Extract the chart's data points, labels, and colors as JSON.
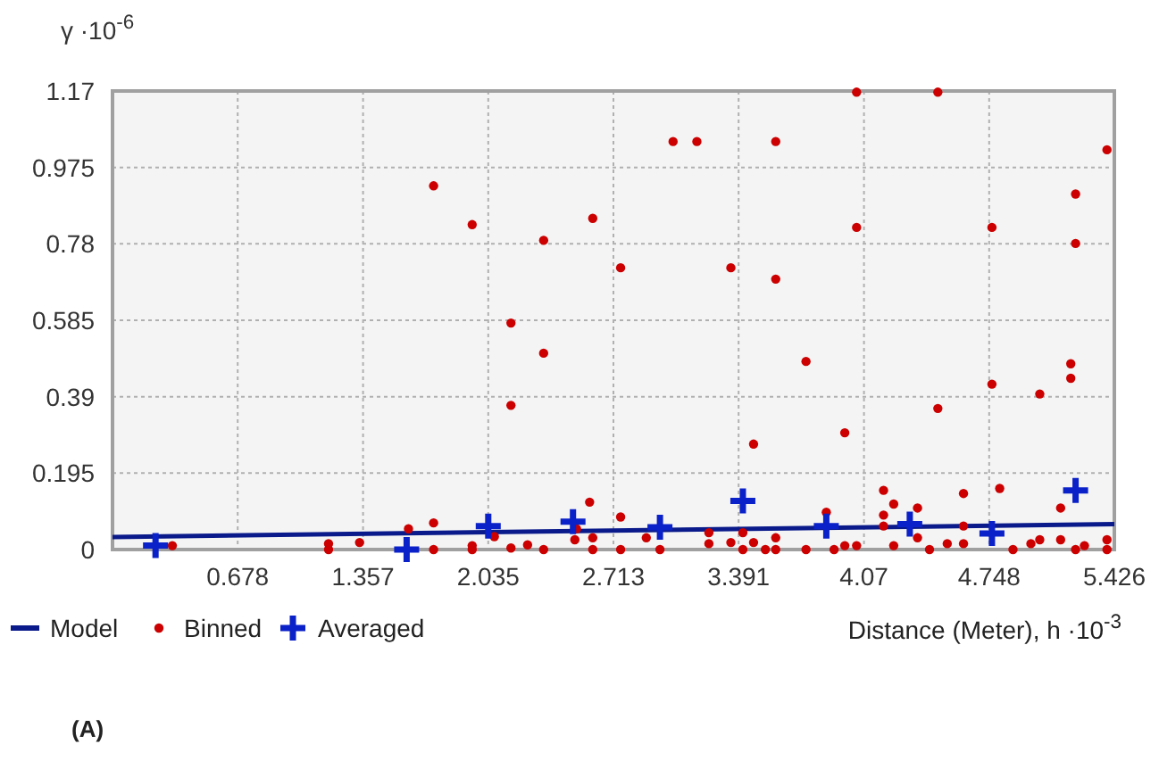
{
  "chart_data": {
    "type": "scatter",
    "xlabel": "Distance (Meter), h ·10$^{-3}$",
    "ylabel": "γ ·10$^{-6}$",
    "annotations": [
      "(A)"
    ],
    "xlim": [
      0,
      5.426
    ],
    "ylim": [
      0,
      1.17
    ],
    "xticks": [
      {
        "value": 0,
        "label": null
      },
      0.678,
      1.357,
      2.035,
      2.713,
      3.391,
      4.07,
      4.748,
      5.426
    ],
    "yticks": [
      0,
      0.195,
      0.39,
      0.585,
      0.78,
      0.975,
      1.17
    ],
    "grid": true,
    "legend": "bottom",
    "series": [
      {
        "name": "Model",
        "type": "line",
        "color": "#0a1a8a",
        "marker": "none",
        "line_style": "solid",
        "x": [
          0,
          5.426
        ],
        "values": [
          0.032,
          0.065
        ]
      },
      {
        "name": "Binned",
        "color": "#cc0000",
        "marker": "circle",
        "x": [
          1.739,
          1.948,
          2.335,
          2.158,
          2.335,
          2.158,
          2.601,
          2.752,
          3.036,
          3.165,
          3.592,
          3.349,
          3.592,
          3.756,
          3.472,
          3.966,
          4.03,
          4.03,
          4.47,
          4.47,
          4.763,
          4.763,
          5.022,
          5.216,
          5.216,
          5.19,
          5.19,
          5.386,
          0.324,
          1.17,
          1.17,
          1.338,
          1.603,
          1.739,
          1.739,
          1.948,
          1.948,
          2.068,
          2.158,
          2.248,
          2.335,
          2.504,
          2.584,
          2.513,
          2.601,
          2.601,
          2.752,
          2.752,
          2.891,
          2.965,
          3.23,
          3.23,
          3.349,
          3.414,
          3.414,
          3.472,
          3.536,
          3.592,
          3.592,
          3.756,
          3.866,
          3.908,
          3.966,
          4.03,
          4.176,
          4.176,
          4.176,
          4.231,
          4.231,
          4.36,
          4.36,
          4.425,
          4.521,
          4.609,
          4.609,
          4.609,
          4.805,
          4.877,
          4.974,
          5.022,
          5.135,
          5.135,
          5.216,
          5.264,
          5.386,
          5.386
        ],
        "values": [
          0.928,
          0.829,
          0.789,
          0.578,
          0.501,
          0.368,
          0.845,
          0.719,
          1.041,
          1.041,
          1.041,
          0.719,
          0.69,
          0.48,
          0.269,
          0.298,
          1.167,
          0.822,
          1.167,
          0.36,
          0.822,
          0.422,
          0.397,
          0.907,
          0.781,
          0.474,
          0.437,
          1.02,
          0.01,
          0.015,
          0,
          0.018,
          0.053,
          0.068,
          0,
          0.01,
          0,
          0.033,
          0.004,
          0.012,
          0,
          0.025,
          0.121,
          0.053,
          0.03,
          0,
          0.083,
          0,
          0.03,
          0,
          0.043,
          0.015,
          0.018,
          0.043,
          0,
          0.018,
          0,
          0.03,
          0,
          0,
          0.095,
          0,
          0.01,
          0.01,
          0.151,
          0.088,
          0.06,
          0.116,
          0.01,
          0.106,
          0.03,
          0,
          0.015,
          0.143,
          0.06,
          0.015,
          0.156,
          0,
          0.015,
          0.025,
          0.106,
          0.025,
          0,
          0.01,
          0.025,
          0
        ]
      },
      {
        "name": "Averaged",
        "color": "#0a20c8",
        "marker": "cross",
        "x": [
          0.233,
          1.593,
          2.035,
          2.494,
          2.965,
          3.414,
          3.866,
          4.318,
          4.763,
          5.216
        ],
        "values": [
          0.01,
          0,
          0.06,
          0.071,
          0.057,
          0.124,
          0.06,
          0.065,
          0.041,
          0.151
        ]
      }
    ]
  }
}
